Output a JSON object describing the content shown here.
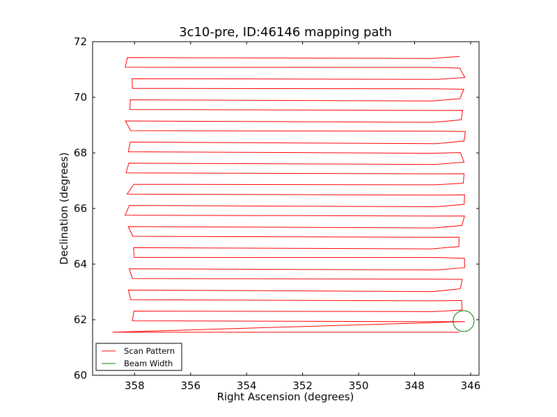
{
  "chart_data": {
    "type": "line",
    "title": "3c10-pre, ID:46146 mapping path",
    "xlabel": "Right Ascension (degrees)",
    "ylabel": "Declination (degrees)",
    "xlim": [
      359.5,
      345.7
    ],
    "ylim": [
      60,
      72
    ],
    "x_ticks": [
      358,
      356,
      354,
      352,
      350,
      348,
      346
    ],
    "y_ticks": [
      60,
      62,
      64,
      66,
      68,
      70,
      72
    ],
    "legend": {
      "position": "lower-left"
    },
    "series": [
      {
        "name": "Scan Pattern",
        "color": "#ff0000",
        "scan": {
          "dec_start": 61.55,
          "dec_end": 71.7,
          "row_spacing": 0.38,
          "ra_low_end": 346.3,
          "ra_high_end": 358.1
        }
      },
      {
        "name": "Beam Width",
        "color": "#008000",
        "circle": {
          "ra_center": 346.25,
          "dec_center": 61.95,
          "diameter_deg": 0.75
        }
      }
    ]
  }
}
